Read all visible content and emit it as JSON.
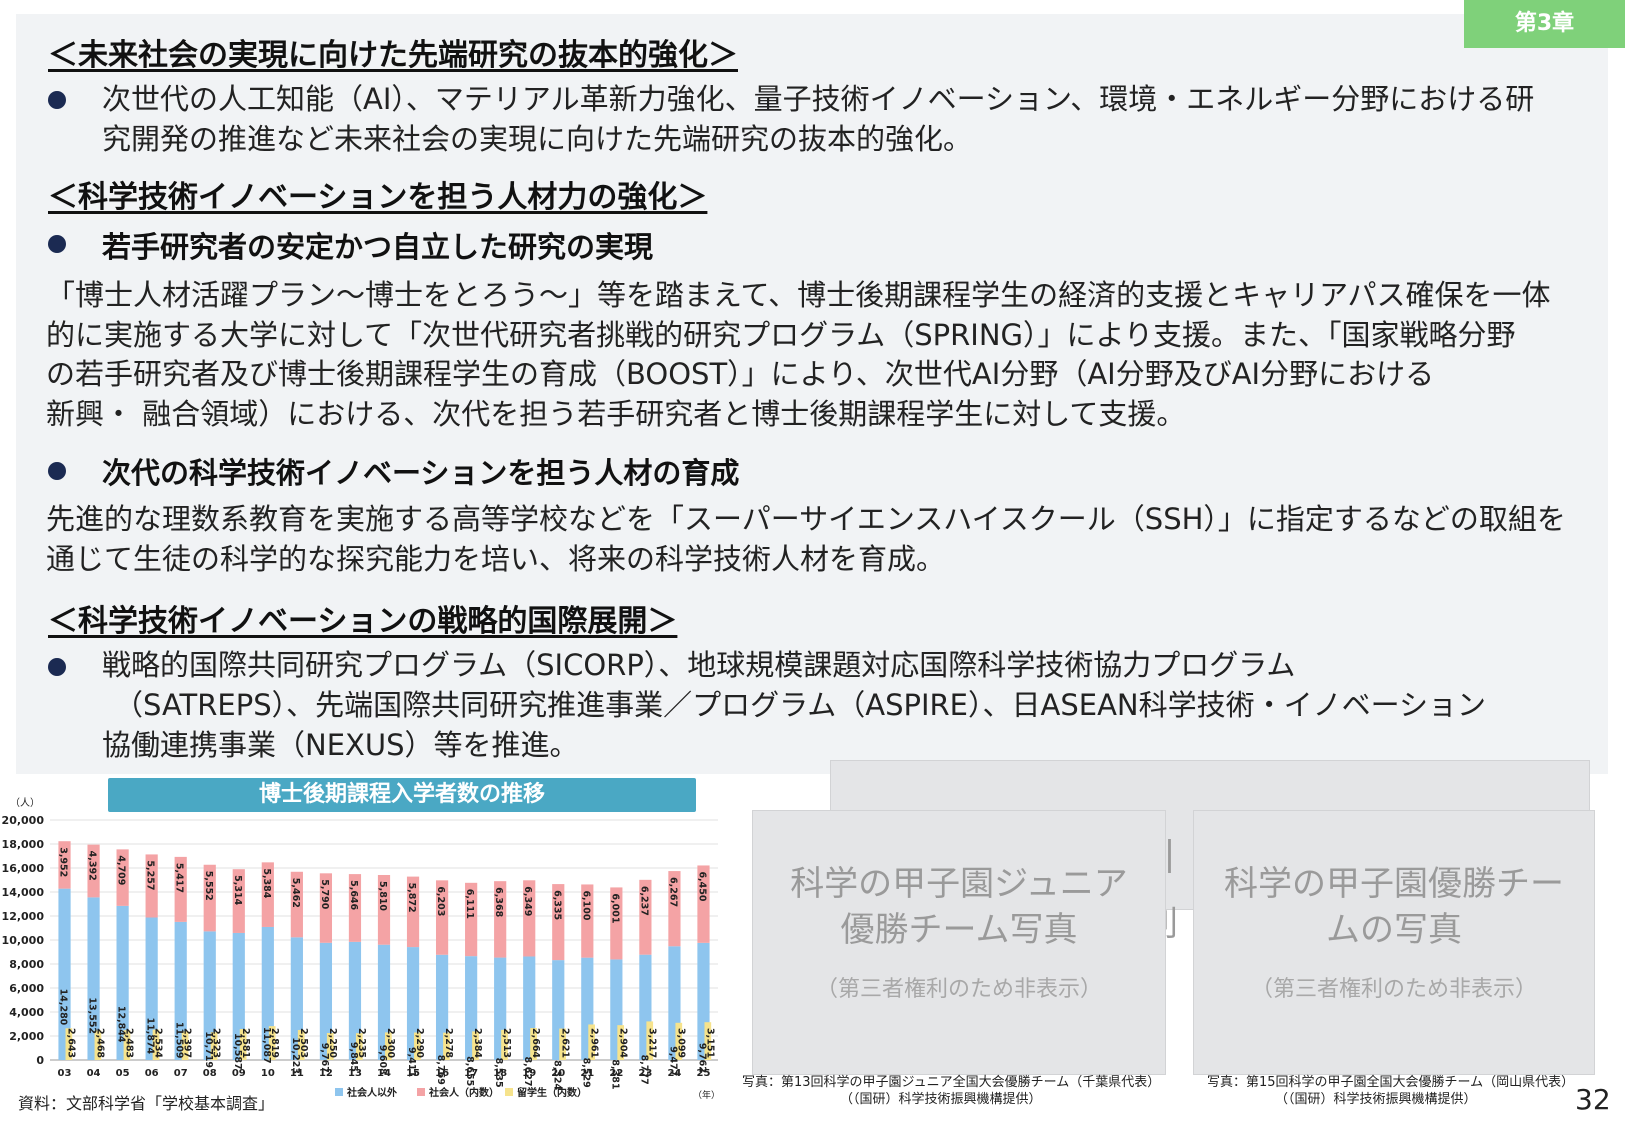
{
  "chapter": "第3章",
  "sections": {
    "s1_heading": "＜未来社会の実現に向けた先端研究の抜本的強化＞",
    "s1_bullet_line1": "次世代の人工知能（AI）、マテリアル革新力強化、量子技術イノベーション、環境・エネルギー分野における研",
    "s1_bullet_line2": "究開発の推進など未来社会の実現に向けた先端研究の抜本的強化。",
    "s2_heading": "＜科学技術イノベーションを担う人材力の強化＞",
    "s2_bullet1_title": "若手研究者の安定かつ自立した研究の実現",
    "s2_para1_line1": "「博士人材活躍プラン～博士をとろう～」等を踏まえて、博士後期課程学生の経済的支援とキャリアパス確保を一体",
    "s2_para1_line2": "的に実施する大学に対して「次世代研究者挑戦的研究プログラム（SPRING）」により支援。また、「国家戦略分野",
    "s2_para1_line3": "の若手研究者及び博士後期課程学生の育成（BOOST）」により、次世代AI分野（AI分野及びAI分野における",
    "s2_para1_line4": "新興・ 融合領域）における、次代を担う若手研究者と博士後期課程学生に対して支援。",
    "s2_bullet2_title": "次代の科学技術イノベーションを担う人材の育成",
    "s2_para2_line1": "先進的な理数系教育を実施する高等学校などを「スーパーサイエンスハイスクール（SSH）」に指定するなどの取組を",
    "s2_para2_line2": "通じて生徒の科学的な探究能力を培い、将来の科学技術人材を育成。",
    "s3_heading": "＜科学技術イノベーションの戦略的国際展開＞",
    "s3_bullet_line1": "戦略的国際共同研究プログラム（SICORP）、地球規模課題対応国際科学技術協力プログラム",
    "s3_bullet_line2": "（SATREPS）、先端国際共同研究推進事業／プログラム（ASPIRE）、日ASEAN科学技術・イノベーション",
    "s3_bullet_line3": "協働連携事業（NEXUS）等を推進。"
  },
  "chart_data": {
    "type": "bar",
    "stacked": true,
    "title": "博士後期課程入学者数の推移",
    "ylabel": "（人）",
    "xlabel": "（年）",
    "ylim": [
      0,
      20000
    ],
    "yticks": [
      "0",
      "2,000",
      "4,000",
      "6,000",
      "8,000",
      "10,000",
      "12,000",
      "14,000",
      "16,000",
      "18,000",
      "20,000"
    ],
    "categories": [
      "03",
      "04",
      "05",
      "06",
      "07",
      "08",
      "09",
      "10",
      "11",
      "12",
      "13",
      "14",
      "15",
      "16",
      "17",
      "18",
      "19",
      "20",
      "21",
      "22",
      "23",
      "24",
      "25"
    ],
    "series": [
      {
        "name": "社会人以外",
        "color": "#8ec5ee",
        "values": [
          14280,
          13552,
          12844,
          11874,
          11509,
          10719,
          10587,
          11087,
          10223,
          9767,
          9845,
          9608,
          9411,
          8769,
          8655,
          8535,
          8627,
          8324,
          8529,
          8381,
          8777,
          9477,
          9762
        ],
        "labels": [
          "14,280",
          "13,552",
          "12,844",
          "11,874",
          "11,509",
          "10,719",
          "10,587",
          "11,087",
          "10,223",
          "9,767",
          "9,845",
          "9,608",
          "9,411",
          "8,769",
          "8,655",
          "8,535",
          "8,627",
          "8,324",
          "8,529",
          "8,381",
          "8,777",
          "9,477",
          "9,762"
        ]
      },
      {
        "name": "社会人（内数）",
        "color": "#f4a3a5",
        "values": [
          3952,
          4392,
          4709,
          5257,
          5417,
          5552,
          5314,
          5384,
          5462,
          5790,
          5646,
          5810,
          5872,
          6203,
          6111,
          6368,
          6349,
          6335,
          6100,
          6001,
          6237,
          6267,
          6450
        ],
        "labels": [
          "3,952",
          "4,392",
          "4,709",
          "5,257",
          "5,417",
          "5,552",
          "5,314",
          "5,384",
          "5,462",
          "5,790",
          "5,646",
          "5,810",
          "5,872",
          "6,203",
          "6,111",
          "6,368",
          "6,349",
          "6,335",
          "6,100",
          "6,001",
          "6,237",
          "6,267",
          "6,450"
        ]
      },
      {
        "name": "留学生（内数）",
        "color": "#f6e38c",
        "values": [
          2643,
          2468,
          2483,
          2534,
          2397,
          2323,
          2581,
          2819,
          2503,
          2250,
          2235,
          2300,
          2290,
          2278,
          2384,
          2513,
          2664,
          2621,
          2961,
          2904,
          3217,
          3099,
          3151
        ],
        "labels": [
          "2,643",
          "2,468",
          "2,483",
          "2,534",
          "2,397",
          "2,323",
          "2,581",
          "2,819",
          "2,503",
          "2,250",
          "2,235",
          "2,300",
          "2,290",
          "2,278",
          "2,384",
          "2,513",
          "2,664",
          "2,621",
          "2,961",
          "2,904",
          "3,217",
          "3,099",
          "3,151"
        ]
      }
    ]
  },
  "source_note": "資料：文部科学省「学校基本調査」",
  "photos": {
    "left_main_line1": "科学の甲子園ジュニア",
    "left_main_line2": "優勝チーム写真",
    "left_sub": "（第三者権利のため非表示）",
    "right_main_line1": "科学の甲子園優勝チー",
    "right_main_line2": "ムの写真",
    "right_sub": "（第三者権利のため非表示）",
    "back_fragment1": "ﾆ|",
    "back_fragment2": "利",
    "caption_left_line1": "写真：第13回科学の甲子園ジュニア全国大会優勝チーム（千葉県代表）",
    "caption_left_line2": "（（国研）科学技術振興機構提供）",
    "caption_right_line1": "写真：第15回科学の甲子園全国大会優勝チーム（岡山県代表）",
    "caption_right_line2": "（（国研）科学技術振興機構提供）"
  },
  "page_number": "32"
}
